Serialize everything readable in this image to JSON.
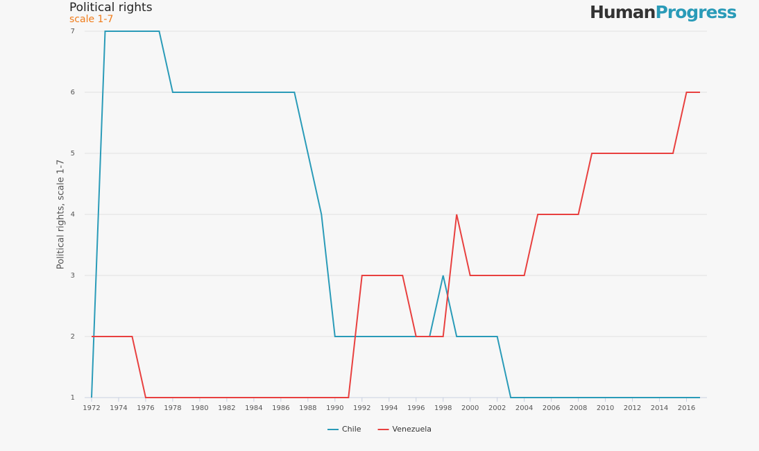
{
  "logo": {
    "first": "Human",
    "second": "Progress"
  },
  "chart_data": {
    "type": "line",
    "title": "Political rights",
    "subtitle": "scale 1-7",
    "y_label": "Political rights, scale 1-7",
    "x": [
      1972,
      1973,
      1974,
      1975,
      1976,
      1977,
      1978,
      1979,
      1980,
      1981,
      1982,
      1983,
      1984,
      1985,
      1986,
      1987,
      1988,
      1989,
      1990,
      1991,
      1992,
      1993,
      1994,
      1995,
      1996,
      1997,
      1998,
      1999,
      2000,
      2001,
      2002,
      2003,
      2004,
      2005,
      2006,
      2007,
      2008,
      2009,
      2010,
      2011,
      2012,
      2013,
      2014,
      2015,
      2016,
      2017
    ],
    "series": [
      {
        "name": "Chile",
        "color": "#2a9bb8",
        "values": [
          1,
          7,
          7,
          7,
          7,
          7,
          6,
          6,
          6,
          6,
          6,
          6,
          6,
          6,
          6,
          6,
          5,
          4,
          2,
          2,
          2,
          2,
          2,
          2,
          2,
          2,
          3,
          2,
          2,
          2,
          2,
          1,
          1,
          1,
          1,
          1,
          1,
          1,
          1,
          1,
          1,
          1,
          1,
          1,
          1,
          1
        ]
      },
      {
        "name": "Venezuela",
        "color": "#e8403f",
        "values": [
          2,
          2,
          2,
          2,
          1,
          1,
          1,
          1,
          1,
          1,
          1,
          1,
          1,
          1,
          1,
          1,
          1,
          1,
          1,
          1,
          3,
          3,
          3,
          3,
          2,
          2,
          2,
          4,
          3,
          3,
          3,
          3,
          3,
          4,
          4,
          4,
          4,
          5,
          5,
          5,
          5,
          5,
          5,
          5,
          6,
          6
        ]
      }
    ],
    "xlim": [
      1972,
      2017
    ],
    "xticks": [
      1972,
      1974,
      1976,
      1978,
      1980,
      1982,
      1984,
      1986,
      1988,
      1990,
      1992,
      1994,
      1996,
      1998,
      2000,
      2002,
      2004,
      2006,
      2008,
      2010,
      2012,
      2014,
      2016
    ],
    "ylim": [
      1,
      7
    ],
    "yticks": [
      1,
      2,
      3,
      4,
      5,
      6,
      7
    ],
    "grid": true
  }
}
